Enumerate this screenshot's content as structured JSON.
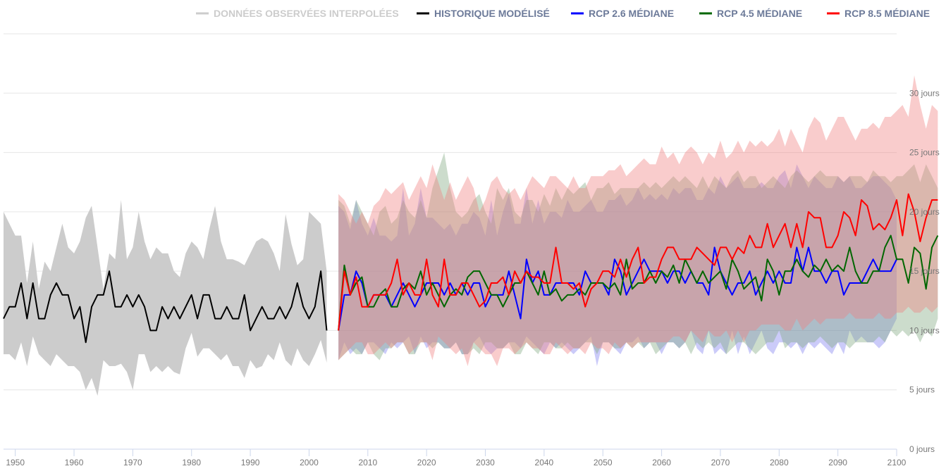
{
  "chart_data": {
    "type": "line",
    "title": "",
    "xlabel": "",
    "ylabel": "",
    "xlim": [
      1948,
      2100
    ],
    "ylim": [
      0,
      35
    ],
    "grid": true,
    "legend_position": "top-right",
    "x_ticks": [
      1950,
      1960,
      1970,
      1980,
      1990,
      2000,
      2010,
      2020,
      2030,
      2040,
      2050,
      2060,
      2070,
      2080,
      2090,
      2100
    ],
    "x_tick_labels": [
      "1950",
      "1960",
      "1970",
      "1980",
      "1990",
      "2000",
      "2010",
      "2020",
      "2030",
      "2040",
      "2050",
      "2060",
      "2070",
      "2080",
      "2090",
      "2100"
    ],
    "y_ticks": [
      0,
      5,
      10,
      15,
      20,
      25,
      30
    ],
    "y_tick_labels": [
      "0 jours",
      "5 jours",
      "10 jours",
      "15 jours",
      "20 jours",
      "25 jours",
      "30 jours"
    ],
    "legend": [
      {
        "label": "DONNÉES OBSERVÉES INTERPOLÉES",
        "color": "#cccccc",
        "text_color": "#cccccc"
      },
      {
        "label": "HISTORIQUE MODÉLISÉ",
        "color": "#000000",
        "text_color": "#6c7a99"
      },
      {
        "label": "RCP 2.6 MÉDIANE",
        "color": "#0000ff",
        "text_color": "#6c7a99"
      },
      {
        "label": "RCP 4.5 MÉDIANE",
        "color": "#006600",
        "text_color": "#6c7a99"
      },
      {
        "label": "RCP 8.5 MÉDIANE",
        "color": "#ff0000",
        "text_color": "#6c7a99"
      }
    ],
    "historical": {
      "name": "HISTORIQUE MODÉLISÉ",
      "color": "#000000",
      "x_start": 1948,
      "values": [
        11,
        12,
        12,
        14,
        11,
        14,
        11,
        11,
        13,
        14,
        13,
        13,
        11,
        12,
        9,
        12,
        13,
        13,
        15,
        12,
        12,
        13,
        12,
        13,
        12,
        10,
        10,
        12,
        11,
        12,
        11,
        12,
        13,
        11,
        13,
        13,
        11,
        11,
        12,
        11,
        11,
        13,
        10,
        11,
        12,
        11,
        11,
        12,
        11,
        12,
        14,
        12,
        11,
        12,
        15,
        10
      ],
      "band_color": "#cccccc",
      "band_opacity": 1,
      "band_low": [
        8,
        8,
        7.5,
        9,
        7,
        9.5,
        8,
        7.5,
        7,
        8,
        7.5,
        7,
        7,
        6.5,
        5,
        6,
        4.5,
        7.5,
        7,
        7,
        7.2,
        6.5,
        5,
        8,
        8,
        6.5,
        7,
        6.5,
        7,
        6.5,
        6.3,
        8.5,
        9.8,
        7.8,
        8.5,
        8.5,
        8,
        7.5,
        8,
        7,
        7,
        6,
        7.5,
        6.8,
        7,
        8,
        7.5,
        9,
        7.5,
        7,
        8.5,
        7.5,
        7,
        8,
        9.2,
        7.3
      ],
      "band_high": [
        20,
        19,
        18,
        18,
        14,
        17.5,
        13.5,
        15.8,
        15,
        17,
        19,
        17,
        16.5,
        17.5,
        19.5,
        20.5,
        17,
        13.5,
        16.5,
        16,
        21,
        16,
        17,
        20,
        17.5,
        16,
        17,
        16.5,
        16.5,
        15,
        14.5,
        16.5,
        17.5,
        17,
        16,
        18.5,
        20.5,
        17.5,
        16,
        16,
        15.8,
        15.5,
        16.5,
        17.5,
        17.8,
        17.5,
        16.5,
        15,
        19.8,
        17.3,
        15.5,
        16,
        20,
        19.5,
        19,
        15
      ]
    },
    "series": [
      {
        "name": "RCP 2.6 MÉDIANE",
        "color": "#0000ff",
        "x_start": 2005,
        "values": [
          10,
          13,
          13,
          15,
          14,
          12,
          13,
          13,
          13,
          12,
          13,
          14,
          13,
          12,
          13,
          14,
          14,
          14,
          13,
          14,
          13,
          14,
          13,
          14,
          14,
          12,
          13,
          13,
          13,
          15,
          13,
          11,
          16,
          14,
          15,
          13,
          13,
          14,
          14,
          14,
          14,
          13,
          15,
          14,
          14,
          14,
          13,
          16,
          15,
          13,
          14,
          15,
          16,
          15,
          15,
          15,
          14,
          15,
          15,
          14,
          15,
          14,
          14,
          13,
          17,
          15,
          14,
          13,
          14,
          14,
          15,
          13,
          14,
          15,
          14,
          15,
          14,
          14,
          17,
          15,
          17,
          15,
          15,
          14,
          15,
          15,
          13,
          14,
          14,
          14,
          15,
          16,
          15,
          15,
          15,
          16
        ],
        "band_low": [
          7.5,
          9,
          8,
          8.5,
          8,
          9,
          9,
          8.5,
          8,
          9,
          8.5,
          9,
          9.5,
          8,
          9.5,
          8.5,
          9,
          9,
          8.5,
          8.5,
          9,
          8,
          8,
          9,
          9.5,
          8.5,
          8,
          8.5,
          8.5,
          9,
          9,
          8.5,
          9.5,
          9,
          8.5,
          8,
          9,
          8.5,
          9,
          8.5,
          8,
          8.5,
          9,
          9.5,
          7,
          9,
          9,
          8.5,
          8,
          9,
          9,
          9.5,
          8.5,
          9,
          9,
          8,
          9,
          9,
          8.5,
          9,
          10,
          8.5,
          8,
          10,
          8,
          8.5,
          8,
          10,
          8,
          9.5,
          8,
          9,
          10,
          8.5,
          8,
          9,
          9,
          8.5,
          9,
          8,
          9,
          8.5,
          9,
          8.5,
          8,
          9,
          8,
          10,
          9,
          9.5,
          9,
          9,
          8.5,
          9,
          10,
          11
        ],
        "band_high": [
          20.5,
          20,
          18.5,
          21,
          19,
          18,
          19.5,
          18,
          18,
          17.5,
          18,
          22,
          18,
          19,
          22,
          19.5,
          19.5,
          19,
          18.5,
          19,
          18,
          19,
          19,
          20,
          19.5,
          18,
          21,
          18,
          20,
          21.5,
          19,
          19,
          22,
          19,
          21,
          19,
          20,
          20,
          19.5,
          21,
          20,
          20,
          20.5,
          21,
          20,
          20,
          21,
          21,
          21.5,
          20.5,
          21,
          22,
          21,
          21.5,
          21,
          21.5,
          21,
          22,
          21.5,
          22,
          22,
          21,
          21,
          22,
          21.5,
          23,
          22,
          22.5,
          23,
          22,
          22,
          22,
          22.5,
          22,
          22,
          23,
          23.5,
          22,
          24,
          23,
          22,
          23,
          22.5,
          22,
          22,
          23,
          22.5,
          23,
          22,
          22,
          22.5,
          23,
          23,
          22.5,
          22,
          21
        ]
      },
      {
        "name": "RCP 4.5 MÉDIANE",
        "color": "#006600",
        "x_start": 2005,
        "values": [
          10,
          15.5,
          13,
          14,
          14.5,
          12,
          12,
          13,
          13.5,
          12,
          12,
          13.5,
          14,
          13.5,
          15,
          13,
          14,
          13,
          12,
          13,
          13.5,
          13,
          14.5,
          15,
          15,
          14,
          13,
          13,
          12,
          13,
          14,
          14,
          15,
          14,
          13,
          15,
          13,
          13.5,
          12.5,
          13,
          13,
          13.5,
          13,
          14,
          14,
          14,
          13.5,
          14,
          13,
          16,
          13.5,
          14,
          14,
          15,
          14,
          15,
          14.5,
          15.5,
          14,
          16,
          15,
          14,
          15,
          14,
          14.5,
          15,
          13.5,
          16,
          15,
          13.5,
          14,
          14.5,
          12.5,
          16,
          15,
          13,
          15,
          15,
          16,
          15,
          14.5,
          15.5,
          15,
          16,
          15,
          15.5,
          15,
          17,
          15,
          14,
          14,
          15,
          15,
          17,
          18,
          16,
          16,
          14,
          17,
          16.5,
          13.5,
          17,
          18
        ],
        "band_low": [
          7.5,
          8,
          8.5,
          8,
          8,
          9,
          8,
          7.5,
          8.5,
          8.5,
          9,
          9,
          8,
          8,
          9,
          9,
          8.5,
          9,
          8.5,
          8.5,
          9,
          8,
          8,
          8.5,
          8,
          9,
          9,
          8.5,
          8.5,
          9,
          8,
          8,
          9,
          8.5,
          8,
          9,
          9,
          8.5,
          8.5,
          9,
          8.5,
          8.5,
          9,
          9,
          8,
          9,
          9,
          8.5,
          8.5,
          9,
          8.5,
          9,
          8.5,
          9,
          8,
          8.5,
          9,
          9,
          8.5,
          9,
          8,
          9,
          8.5,
          9,
          8.5,
          9,
          8,
          8.5,
          9,
          9,
          8.5,
          8,
          8.5,
          9,
          9,
          10,
          8.5,
          9,
          9,
          8.5,
          9,
          9,
          9.5,
          9,
          8.5,
          9,
          9,
          8.5,
          9,
          9,
          9,
          9,
          9.5,
          9,
          10,
          9.5,
          10,
          9.5,
          10,
          9,
          10,
          9.5,
          11
        ],
        "band_high": [
          21,
          20.5,
          19,
          21,
          20,
          19,
          18,
          20,
          20.5,
          19,
          19.5,
          21,
          20,
          19.5,
          21,
          19.5,
          22,
          23.5,
          25,
          22,
          20,
          19.5,
          20,
          21,
          21.5,
          20,
          19,
          22,
          21,
          22,
          20,
          19.5,
          21,
          21,
          20,
          21.5,
          20.5,
          22,
          21,
          22,
          21.5,
          22,
          22.5,
          21,
          22,
          22,
          22.5,
          21.5,
          22,
          22,
          22,
          22,
          22.5,
          22,
          22.5,
          22,
          22.5,
          23,
          22.5,
          23,
          22.5,
          22,
          23,
          22,
          23,
          22.5,
          22,
          23,
          23.5,
          22.5,
          23,
          23,
          22,
          22.5,
          23,
          22.5,
          22,
          23,
          23.5,
          23,
          22.5,
          23,
          23.5,
          23,
          23,
          23,
          22.5,
          23,
          23,
          23,
          22.5,
          23.5,
          23,
          23,
          22.5,
          23,
          23,
          23.5,
          24,
          22.5,
          24,
          23,
          22
        ]
      },
      {
        "name": "RCP 8.5 MÉDIANE",
        "color": "#ff0000",
        "x_start": 2005,
        "values": [
          10,
          15,
          13,
          14.5,
          12,
          12,
          13,
          13,
          13,
          14,
          16,
          13,
          14,
          13,
          13,
          16,
          13,
          12,
          16,
          13,
          13,
          14,
          14,
          13,
          12,
          12.5,
          14,
          14,
          14.5,
          13,
          15,
          14,
          15,
          14.5,
          14.5,
          14,
          14,
          17,
          14,
          14,
          13.5,
          14,
          12,
          13.5,
          14,
          15,
          15,
          14.5,
          16,
          14.5,
          16,
          17,
          14,
          14.5,
          14.5,
          16,
          17,
          17,
          16,
          16,
          16,
          17,
          16.5,
          16,
          15.5,
          17,
          17,
          16,
          17,
          16.5,
          18,
          17,
          17,
          19,
          17,
          18,
          19,
          17,
          19,
          17,
          20,
          19.5,
          19.5,
          17,
          17,
          18,
          20,
          19.5,
          18,
          21,
          20.5,
          18.5,
          19,
          18.5,
          19.5,
          21,
          18,
          21.5,
          20,
          17.5,
          19.5,
          21,
          21
        ],
        "band_low": [
          7.5,
          8,
          8.5,
          9,
          9,
          8,
          8,
          8.5,
          9,
          8.5,
          9,
          9,
          8,
          8.5,
          9,
          9,
          7.5,
          9.5,
          9,
          8.5,
          8,
          8.5,
          7,
          9,
          8.5,
          8,
          8,
          7,
          8.5,
          8.5,
          8,
          8.5,
          9,
          8.5,
          8.5,
          8,
          8,
          9,
          8.5,
          8,
          8.5,
          8.5,
          8,
          9,
          8.5,
          8.5,
          8,
          9,
          8.5,
          9,
          8.5,
          9,
          9,
          9,
          9,
          9,
          9,
          9.5,
          9.5,
          9,
          10,
          9.5,
          9,
          10,
          9.5,
          9.5,
          10,
          9,
          10,
          9,
          10,
          10,
          10.5,
          10.5,
          10.5,
          10.5,
          10,
          10,
          11,
          10,
          10.5,
          11,
          10.5,
          11,
          11,
          11,
          11,
          11.5,
          11,
          11,
          11,
          11,
          11.5,
          11,
          11,
          11.5,
          11.5,
          12,
          11.5,
          11.5,
          12,
          11.5,
          12
        ],
        "band_high": [
          21.5,
          21,
          20,
          19,
          20,
          19,
          20.5,
          21,
          22,
          21.5,
          22,
          22.5,
          21,
          22,
          23,
          22,
          24,
          22.5,
          21,
          22.5,
          21,
          22,
          23,
          22,
          20,
          21,
          22.5,
          23,
          22,
          21.5,
          22,
          21,
          22,
          23,
          22.5,
          22,
          23,
          23,
          22.5,
          22,
          23,
          22,
          22,
          23,
          23,
          23,
          23.5,
          23.5,
          24,
          23,
          23.5,
          24,
          24.5,
          24,
          24,
          25.5,
          24.5,
          25,
          24,
          25,
          25.5,
          25,
          24,
          25,
          24.5,
          26,
          24.5,
          25,
          26,
          25,
          26,
          25.5,
          26,
          25.5,
          26,
          27,
          25.5,
          27,
          26,
          25,
          27,
          28,
          27.5,
          26,
          27,
          28,
          28,
          27,
          26,
          27,
          27,
          27.5,
          27,
          28,
          28,
          28.5,
          29,
          28,
          31.5,
          29,
          27,
          29,
          28.5
        ]
      }
    ],
    "band_colors": {
      "RCP 2.6 MÉDIANE": "#7e7ef0",
      "RCP 4.5 MÉDIANE": "#7fa87f",
      "RCP 8.5 MÉDIANE": "#f08080"
    }
  }
}
